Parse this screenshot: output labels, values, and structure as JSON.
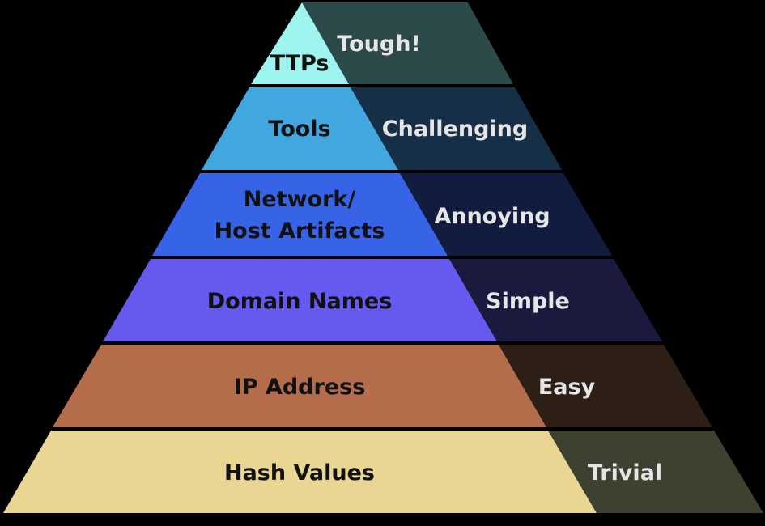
{
  "levels": [
    {
      "indicator": "TTPs",
      "difficulty": "Tough!",
      "left_color": "#9ef5ef",
      "right_color": "#2d4a4b"
    },
    {
      "indicator": "Tools",
      "difficulty": "Challenging",
      "left_color": "#43a7df",
      "right_color": "#142f46"
    },
    {
      "indicator_lines": [
        "Network/",
        "Host Artifacts"
      ],
      "difficulty": "Annoying",
      "left_color": "#3763e6",
      "right_color": "#121c3f"
    },
    {
      "indicator": "Domain Names",
      "difficulty": "Simple",
      "left_color": "#6559ef",
      "right_color": "#1a1a3f"
    },
    {
      "indicator": "IP Address",
      "difficulty": "Easy",
      "left_color": "#b46c4b",
      "right_color": "#2e1f16"
    },
    {
      "indicator": "Hash Values",
      "difficulty": "Trivial",
      "left_color": "#e8d692",
      "right_color": "#3d412f"
    }
  ]
}
